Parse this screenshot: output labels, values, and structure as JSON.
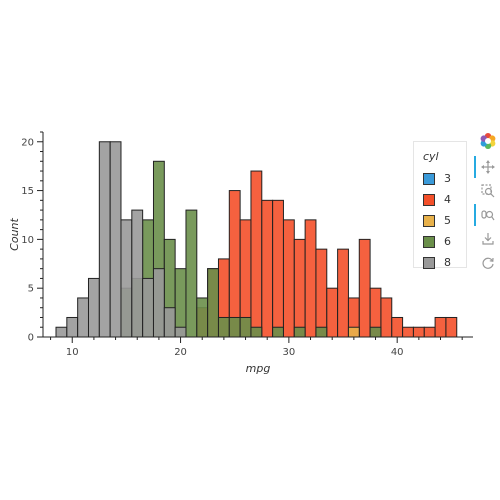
{
  "chart_data": {
    "type": "bar",
    "title": "",
    "xlabel": "mpg",
    "ylabel": "Count",
    "xlim": [
      7.3,
      47.0
    ],
    "ylim": [
      0,
      21
    ],
    "xticks": [
      10,
      20,
      30,
      40
    ],
    "yticks": [
      0,
      5,
      10,
      15,
      20
    ],
    "bin_width": 1,
    "grid": false,
    "legend": {
      "title": "cyl",
      "position": "top-right"
    },
    "series": [
      {
        "name": "3",
        "color": "#3a9ad9",
        "bins": []
      },
      {
        "name": "4",
        "color": "#f4502a",
        "bins": [
          {
            "x": 22,
            "y": 3
          },
          {
            "x": 23,
            "y": 7
          },
          {
            "x": 24,
            "y": 8
          },
          {
            "x": 25,
            "y": 15
          },
          {
            "x": 26,
            "y": 12
          },
          {
            "x": 27,
            "y": 17
          },
          {
            "x": 28,
            "y": 14
          },
          {
            "x": 29,
            "y": 14
          },
          {
            "x": 30,
            "y": 12
          },
          {
            "x": 31,
            "y": 10
          },
          {
            "x": 32,
            "y": 12
          },
          {
            "x": 33,
            "y": 9
          },
          {
            "x": 34,
            "y": 5
          },
          {
            "x": 35,
            "y": 9
          },
          {
            "x": 36,
            "y": 4
          },
          {
            "x": 37,
            "y": 10
          },
          {
            "x": 38,
            "y": 5
          },
          {
            "x": 39,
            "y": 4
          },
          {
            "x": 40,
            "y": 2
          },
          {
            "x": 41,
            "y": 1
          },
          {
            "x": 42,
            "y": 1
          },
          {
            "x": 43,
            "y": 1
          },
          {
            "x": 44,
            "y": 2
          },
          {
            "x": 45,
            "y": 2
          }
        ]
      },
      {
        "name": "5",
        "color": "#e8b14a",
        "bins": [
          {
            "x": 36,
            "y": 1
          }
        ]
      },
      {
        "name": "6",
        "color": "#6a8f4a",
        "bins": [
          {
            "x": 15,
            "y": 5
          },
          {
            "x": 16,
            "y": 6
          },
          {
            "x": 17,
            "y": 12
          },
          {
            "x": 18,
            "y": 18
          },
          {
            "x": 19,
            "y": 10
          },
          {
            "x": 20,
            "y": 7
          },
          {
            "x": 21,
            "y": 13
          },
          {
            "x": 22,
            "y": 4
          },
          {
            "x": 23,
            "y": 7
          },
          {
            "x": 24,
            "y": 2
          },
          {
            "x": 25,
            "y": 2
          },
          {
            "x": 26,
            "y": 2
          },
          {
            "x": 27,
            "y": 1
          },
          {
            "x": 29,
            "y": 1
          },
          {
            "x": 31,
            "y": 1
          },
          {
            "x": 33,
            "y": 1
          },
          {
            "x": 38,
            "y": 1
          }
        ]
      },
      {
        "name": "8",
        "color": "#999999",
        "bins": [
          {
            "x": 9,
            "y": 1
          },
          {
            "x": 10,
            "y": 2
          },
          {
            "x": 11,
            "y": 4
          },
          {
            "x": 12,
            "y": 6
          },
          {
            "x": 13,
            "y": 20
          },
          {
            "x": 14,
            "y": 20
          },
          {
            "x": 15,
            "y": 12
          },
          {
            "x": 16,
            "y": 13
          },
          {
            "x": 17,
            "y": 6
          },
          {
            "x": 18,
            "y": 7
          },
          {
            "x": 19,
            "y": 3
          },
          {
            "x": 20,
            "y": 1
          }
        ]
      }
    ]
  },
  "toolbar": {
    "tools": [
      {
        "name": "bokeh-logo-icon",
        "interactable": false
      },
      {
        "name": "pan-tool-icon",
        "interactable": true,
        "active": true
      },
      {
        "name": "box-zoom-tool-icon",
        "interactable": true
      },
      {
        "name": "wheel-zoom-tool-icon",
        "interactable": true,
        "active": true
      },
      {
        "name": "save-tool-icon",
        "interactable": true
      },
      {
        "name": "reset-tool-icon",
        "interactable": true
      }
    ]
  }
}
